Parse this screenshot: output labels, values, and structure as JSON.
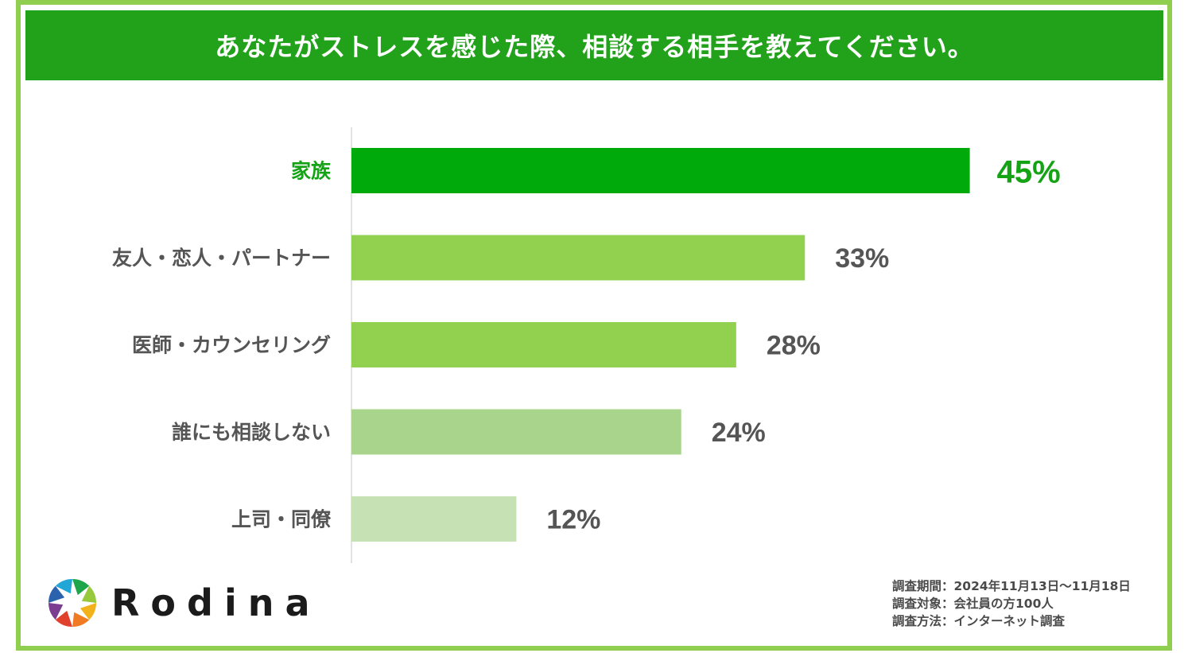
{
  "title": "あなたがストレスを感じた際、相談する相手を教えてください。",
  "colors": {
    "frame": "#8fce4f",
    "title_bg": "#22a11b",
    "highlight": "#00a80b",
    "label_text": "#555555"
  },
  "chart_data": {
    "type": "bar",
    "orientation": "horizontal",
    "categories": [
      "家族",
      "友人・恋人・パートナー",
      "医師・カウンセリング",
      "誰にも相談しない",
      "上司・同僚"
    ],
    "values": [
      45,
      33,
      28,
      24,
      12
    ],
    "value_labels": [
      "45%",
      "33%",
      "28%",
      "24%",
      "12%"
    ],
    "unit": "%",
    "xlim": [
      0,
      100
    ],
    "bar_colors": [
      "#00aa0a",
      "#92d050",
      "#92d050",
      "#a8d48c",
      "#c6e1b4"
    ],
    "label_colors": [
      "#14a314",
      "#555555",
      "#555555",
      "#555555",
      "#555555"
    ],
    "highlight_index": 0
  },
  "logo": {
    "text": "Rodina",
    "icon": "aperture-logo-icon"
  },
  "notes": [
    "調査期間：2024年11月13日～11月18日",
    "調査対象：会社員の方100人",
    "調査方法：インターネット調査"
  ]
}
